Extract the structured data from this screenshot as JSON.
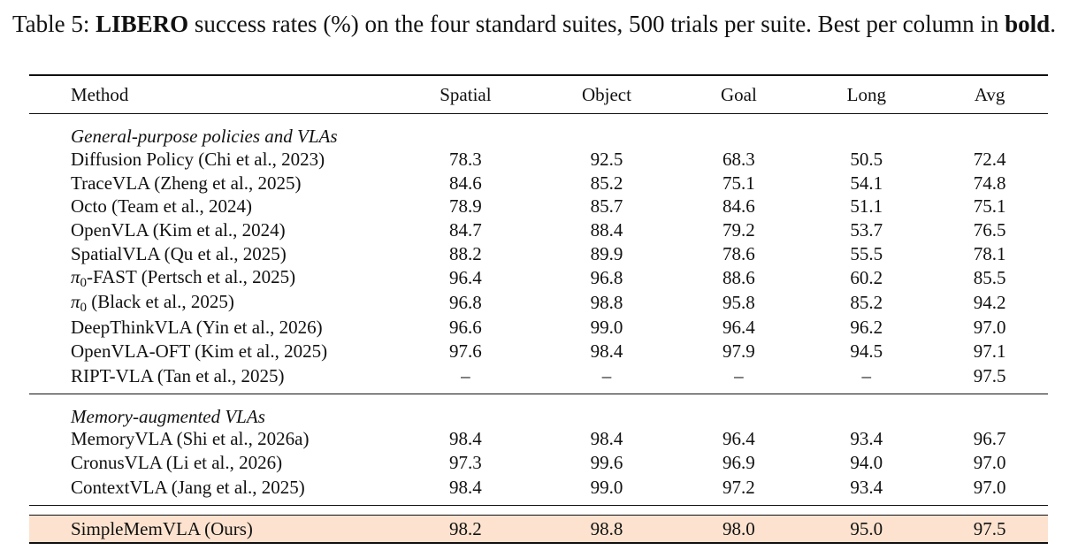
{
  "caption": {
    "prefix": "Table 5:",
    "bold_name": "LIBERO",
    "text": "success rates (%) on the four standard suites, 500 trials per suite. Best per column in",
    "bold_word": "bold",
    "suffix": "."
  },
  "columns": [
    "Method",
    "Spatial",
    "Object",
    "Goal",
    "Long",
    "Avg"
  ],
  "groups": [
    {
      "title": "General-purpose policies and VLAs",
      "rows": [
        {
          "method": "Diffusion Policy (Chi et al., 2023)",
          "values": [
            "78.3",
            "92.5",
            "68.3",
            "50.5",
            "72.4"
          ],
          "bold": []
        },
        {
          "method": "TraceVLA (Zheng et al., 2025)",
          "values": [
            "84.6",
            "85.2",
            "75.1",
            "54.1",
            "74.8"
          ],
          "bold": []
        },
        {
          "method": "Octo (Team et al., 2024)",
          "values": [
            "78.9",
            "85.7",
            "84.6",
            "51.1",
            "75.1"
          ],
          "bold": []
        },
        {
          "method": "OpenVLA (Kim et al., 2024)",
          "values": [
            "84.7",
            "88.4",
            "79.2",
            "53.7",
            "76.5"
          ],
          "bold": []
        },
        {
          "method": "SpatialVLA (Qu et al., 2025)",
          "values": [
            "88.2",
            "89.9",
            "78.6",
            "55.5",
            "78.1"
          ],
          "bold": []
        },
        {
          "method": "-FAST (Pertsch et al., 2025)",
          "pi": "π",
          "pi_sub": "0",
          "values": [
            "96.4",
            "96.8",
            "88.6",
            "60.2",
            "85.5"
          ],
          "bold": []
        },
        {
          "method": " (Black et al., 2025)",
          "pi": "π",
          "pi_sub": "0",
          "values": [
            "96.8",
            "98.8",
            "95.8",
            "85.2",
            "94.2"
          ],
          "bold": []
        },
        {
          "method": "DeepThinkVLA (Yin et al., 2026)",
          "values": [
            "96.6",
            "99.0",
            "96.4",
            "96.2",
            "97.0"
          ],
          "bold": [
            3
          ]
        },
        {
          "method": "OpenVLA-OFT (Kim et al., 2025)",
          "values": [
            "97.6",
            "98.4",
            "97.9",
            "94.5",
            "97.1"
          ],
          "bold": []
        },
        {
          "method": "RIPT-VLA (Tan et al., 2025)",
          "values": [
            "–",
            "–",
            "–",
            "–",
            "97.5"
          ],
          "bold": [
            4
          ]
        }
      ]
    },
    {
      "title": "Memory-augmented VLAs",
      "rows": [
        {
          "method": "MemoryVLA (Shi et al., 2026a)",
          "values": [
            "98.4",
            "98.4",
            "96.4",
            "93.4",
            "96.7"
          ],
          "bold": [
            0
          ]
        },
        {
          "method": "CronusVLA (Li et al., 2026)",
          "values": [
            "97.3",
            "99.6",
            "96.9",
            "94.0",
            "97.0"
          ],
          "bold": [
            1
          ]
        },
        {
          "method": "ContextVLA (Jang et al., 2025)",
          "values": [
            "98.4",
            "99.0",
            "97.2",
            "93.4",
            "97.0"
          ],
          "bold": [
            0
          ]
        }
      ]
    }
  ],
  "ours": {
    "method": "SimpleMemVLA (Ours)",
    "values": [
      "98.2",
      "98.8",
      "98.0",
      "95.0",
      "97.5"
    ],
    "bold": [
      2,
      4
    ]
  },
  "colors": {
    "highlight": "#fde3cf"
  }
}
